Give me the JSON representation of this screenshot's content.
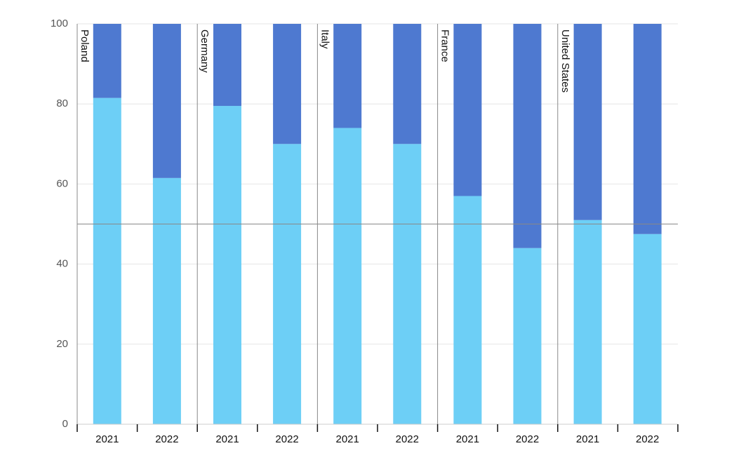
{
  "chart_data": {
    "type": "stacked_bar",
    "groups": [
      "Poland",
      "Germany",
      "Italy",
      "France",
      "United States"
    ],
    "categories": [
      "2021",
      "2022",
      "2021",
      "2022",
      "2021",
      "2022",
      "2021",
      "2022",
      "2021",
      "2022"
    ],
    "series": [
      {
        "color": "#6dcff6",
        "values": [
          81.5,
          61.5,
          79.5,
          70,
          74,
          70,
          57,
          44,
          51,
          47.5
        ]
      },
      {
        "color": "#4e79d0",
        "values": [
          18.5,
          38.5,
          20.5,
          30,
          26,
          30,
          43,
          56,
          49,
          52.5
        ]
      }
    ],
    "ylim": [
      0,
      100
    ],
    "yticks": [
      0,
      20,
      40,
      60,
      80,
      100
    ],
    "grid": true,
    "reference_line": 50
  }
}
